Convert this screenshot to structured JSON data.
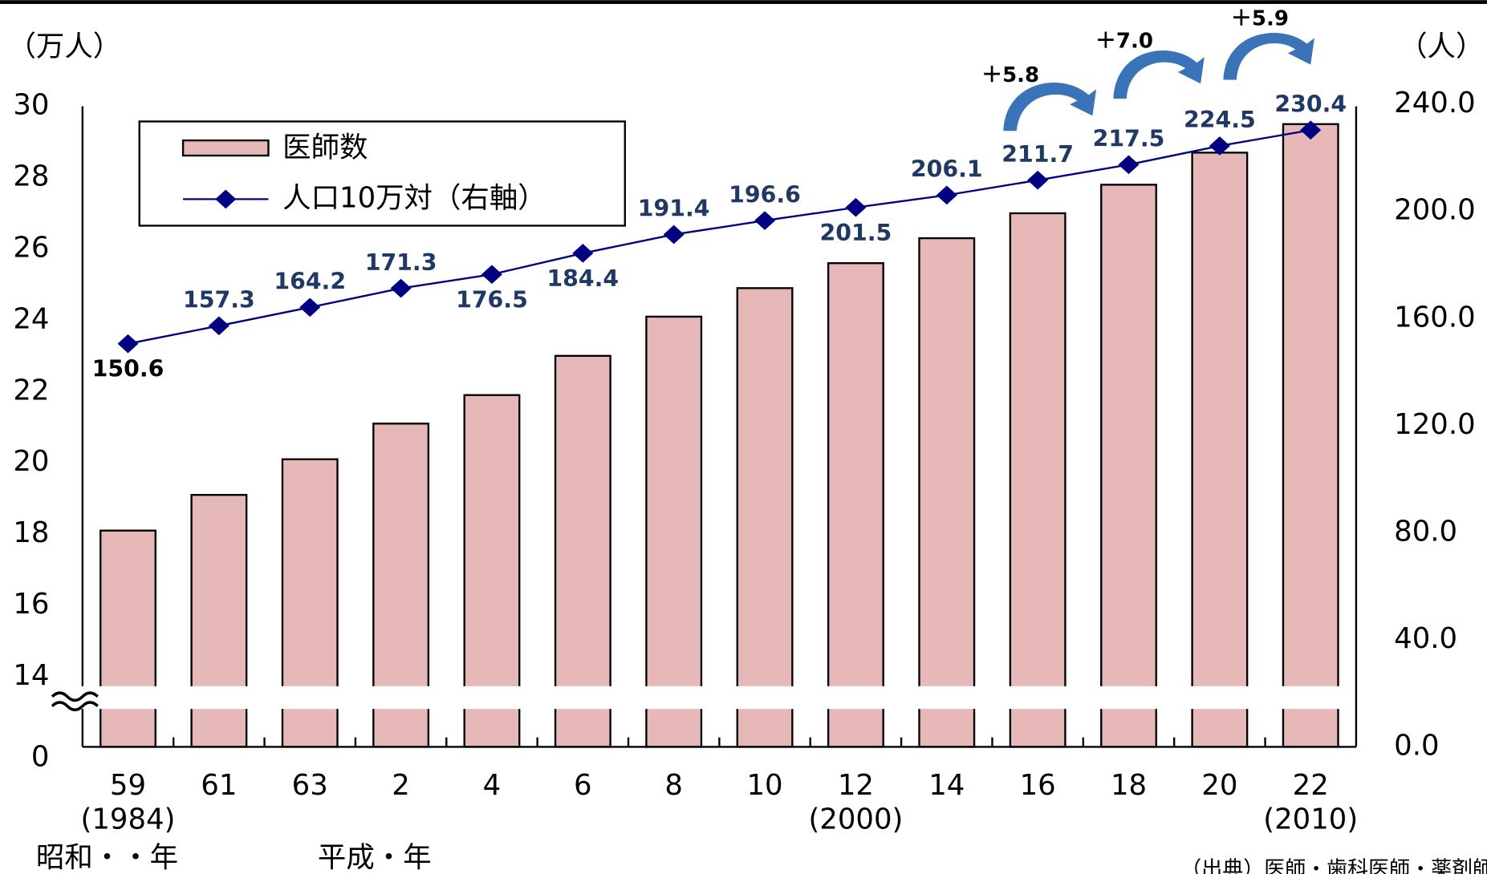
{
  "chart_data": {
    "type": "bar_line",
    "y_axis_label": "（万人）",
    "y2_axis_label": "（人）",
    "categories": [
      "59",
      "61",
      "63",
      "2",
      "4",
      "6",
      "8",
      "10",
      "12",
      "14",
      "16",
      "18",
      "20",
      "22"
    ],
    "category_sublabels": [
      "(1984)",
      null,
      null,
      null,
      null,
      null,
      null,
      null,
      "(2000)",
      null,
      null,
      null,
      null,
      "(2010)"
    ],
    "era_labels": [
      "昭和・・年",
      "平成・年"
    ],
    "series": [
      {
        "name": "医師数",
        "type": "bar",
        "color": "#e6b8b7",
        "values": [
          18.1,
          19.1,
          20.1,
          21.1,
          21.9,
          23.0,
          24.1,
          24.9,
          25.6,
          26.3,
          27.0,
          27.8,
          28.7,
          29.5
        ]
      },
      {
        "name": "人口10万対（右軸）",
        "type": "line",
        "axis": "y2",
        "color": "#000080",
        "values": [
          150.6,
          157.3,
          164.2,
          171.3,
          176.5,
          184.4,
          191.4,
          196.6,
          201.5,
          206.1,
          211.7,
          217.5,
          224.5,
          230.4
        ]
      }
    ],
    "ylim": [
      0,
      30
    ],
    "y_axis_break": [
      0,
      14
    ],
    "yticks": [
      0,
      14,
      16,
      18,
      20,
      22,
      24,
      26,
      28,
      30
    ],
    "y2lim": [
      0,
      240
    ],
    "y2ticks": [
      {
        "value": 0,
        "label": "0.0"
      },
      {
        "value": 40,
        "label": "40.0"
      },
      {
        "value": 80,
        "label": "80.0"
      },
      {
        "value": 120,
        "label": "120.0"
      },
      {
        "value": 160,
        "label": "160.0"
      },
      {
        "value": 200,
        "label": "200.0"
      },
      {
        "value": 240,
        "label": "240.0"
      }
    ],
    "annotations": [
      "＋5.8",
      "＋7.0",
      "＋5.9"
    ],
    "source": "（出典）医師・歯科医師・薬剤師調査"
  }
}
